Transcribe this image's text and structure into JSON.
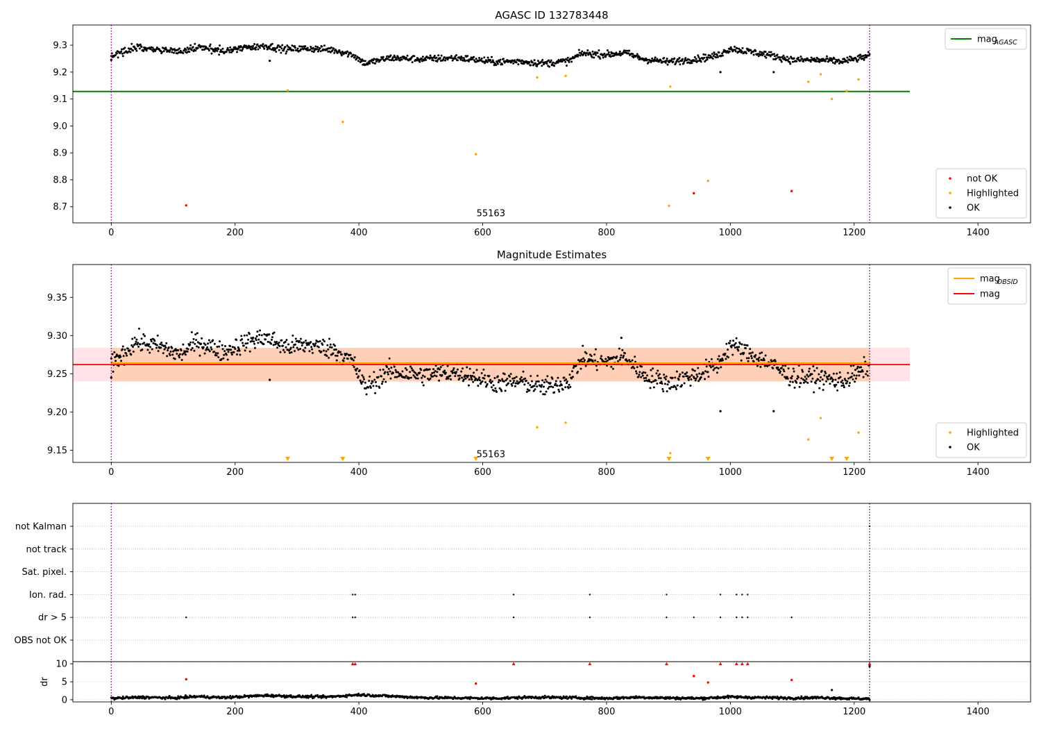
{
  "chart_data": [
    {
      "type": "scatter",
      "title": "AGASC ID 132783448",
      "xlim": [
        -62,
        1485
      ],
      "ylim": [
        8.64,
        9.375
      ],
      "yticks": [
        8.7,
        8.8,
        8.9,
        9.0,
        9.1,
        9.2,
        9.3
      ],
      "xticks": [
        0,
        200,
        400,
        600,
        800,
        1000,
        1200,
        1400
      ],
      "vlines": [
        0,
        1225
      ],
      "hlines": [
        {
          "name": "mag_AGASC",
          "label_main": "mag",
          "label_sub": "AGASC",
          "y": 9.128,
          "xmin": -62,
          "xmax": 1290,
          "color": "#008000"
        }
      ],
      "annotation": {
        "text": "55163",
        "x": 590,
        "y": 8.665
      },
      "legend_upper": [
        {
          "label_main": "mag",
          "label_sub": "AGASC",
          "color": "#008000"
        }
      ],
      "legend_lower": [
        {
          "label": "not OK",
          "color": "#ff0000"
        },
        {
          "label": "Highlighted",
          "color": "#ffa500"
        },
        {
          "label": "OK",
          "color": "#000000"
        }
      ],
      "series": [
        {
          "name": "not OK",
          "color": "#ff0000",
          "points": [
            [
              121,
              8.705
            ],
            [
              941,
              8.75
            ],
            [
              1099,
              8.758
            ]
          ]
        },
        {
          "name": "Highlighted",
          "color": "#ffa500",
          "points": [
            [
              285,
              9.132
            ],
            [
              374,
              9.015
            ],
            [
              589,
              8.895
            ],
            [
              688,
              9.18
            ],
            [
              734,
              9.186
            ],
            [
              901,
              8.703
            ],
            [
              903,
              9.146
            ],
            [
              964,
              8.796
            ],
            [
              1126,
              9.164
            ],
            [
              1146,
              9.192
            ],
            [
              1164,
              9.1
            ],
            [
              1188,
              9.13
            ],
            [
              1207,
              9.173
            ]
          ]
        },
        {
          "name": "OK",
          "color": "#000000",
          "trend": [
            [
              0,
              9.262
            ],
            [
              40,
              9.292
            ],
            [
              80,
              9.285
            ],
            [
              110,
              9.275
            ],
            [
              140,
              9.292
            ],
            [
              180,
              9.278
            ],
            [
              220,
              9.292
            ],
            [
              250,
              9.298
            ],
            [
              280,
              9.285
            ],
            [
              320,
              9.288
            ],
            [
              360,
              9.282
            ],
            [
              390,
              9.265
            ],
            [
              410,
              9.232
            ],
            [
              450,
              9.253
            ],
            [
              500,
              9.248
            ],
            [
              560,
              9.253
            ],
            [
              620,
              9.238
            ],
            [
              660,
              9.24
            ],
            [
              700,
              9.232
            ],
            [
              740,
              9.242
            ],
            [
              760,
              9.27
            ],
            [
              800,
              9.265
            ],
            [
              830,
              9.272
            ],
            [
              860,
              9.248
            ],
            [
              900,
              9.238
            ],
            [
              950,
              9.25
            ],
            [
              980,
              9.262
            ],
            [
              1000,
              9.288
            ],
            [
              1020,
              9.28
            ],
            [
              1060,
              9.265
            ],
            [
              1100,
              9.245
            ],
            [
              1140,
              9.245
            ],
            [
              1180,
              9.24
            ],
            [
              1210,
              9.252
            ],
            [
              1225,
              9.262
            ]
          ],
          "n": 1225,
          "spread": 0.009,
          "outliers": [
            [
              0,
              9.245
            ],
            [
              256,
              9.242
            ],
            [
              984,
              9.2
            ],
            [
              1070,
              9.2
            ]
          ]
        }
      ]
    },
    {
      "type": "scatter",
      "title": "Magnitude Estimates",
      "xlim": [
        -62,
        1485
      ],
      "ylim": [
        9.134,
        9.393
      ],
      "yticks": [
        9.15,
        9.2,
        9.25,
        9.3,
        9.35
      ],
      "xticks": [
        0,
        200,
        400,
        600,
        800,
        1000,
        1200,
        1400
      ],
      "vlines": [
        0,
        1225
      ],
      "bands": [
        {
          "name": "mag band",
          "ymin": 9.24,
          "ymax": 9.284,
          "xmin": -62,
          "xmax": 1290,
          "color": "#ff9aaa",
          "opacity": 0.28
        },
        {
          "name": "mag_OBSID band",
          "ymin": 9.24,
          "ymax": 9.284,
          "xmin": 0,
          "xmax": 1225,
          "color": "#ffa24a",
          "opacity": 0.3
        }
      ],
      "hlines": [
        {
          "name": "mag_OBSID",
          "y": 9.264,
          "xmin": 0,
          "xmax": 1225,
          "color": "#ffa500"
        },
        {
          "name": "mag",
          "y": 9.262,
          "xmin": -62,
          "xmax": 1290,
          "color": "#ff0000"
        }
      ],
      "annotation": {
        "text": "55163",
        "x": 590,
        "y": 9.141
      },
      "legend_upper": [
        {
          "label_main": "mag",
          "label_sub": "OBSID",
          "color": "#ffa500"
        },
        {
          "label_main": "mag",
          "label_sub": "",
          "color": "#ff0000"
        }
      ],
      "legend_lower": [
        {
          "label": "Highlighted",
          "color": "#ffa500"
        },
        {
          "label": "OK",
          "color": "#000000"
        }
      ],
      "series": [
        {
          "name": "Highlighted",
          "color": "#ffa500",
          "points": [
            [
              688,
              9.18
            ],
            [
              734,
              9.186
            ],
            [
              903,
              9.146
            ],
            [
              1126,
              9.164
            ],
            [
              1146,
              9.192
            ],
            [
              1207,
              9.173
            ]
          ],
          "below_markers": [
            285,
            374,
            589,
            901,
            964,
            1164,
            1188
          ]
        },
        {
          "name": "OK",
          "color": "#000000",
          "trend": [
            [
              0,
              9.262
            ],
            [
              40,
              9.292
            ],
            [
              80,
              9.285
            ],
            [
              110,
              9.275
            ],
            [
              140,
              9.292
            ],
            [
              180,
              9.278
            ],
            [
              220,
              9.292
            ],
            [
              250,
              9.298
            ],
            [
              280,
              9.285
            ],
            [
              320,
              9.288
            ],
            [
              360,
              9.282
            ],
            [
              390,
              9.265
            ],
            [
              410,
              9.232
            ],
            [
              450,
              9.253
            ],
            [
              500,
              9.248
            ],
            [
              560,
              9.253
            ],
            [
              620,
              9.238
            ],
            [
              660,
              9.24
            ],
            [
              700,
              9.232
            ],
            [
              740,
              9.242
            ],
            [
              760,
              9.27
            ],
            [
              800,
              9.265
            ],
            [
              830,
              9.272
            ],
            [
              860,
              9.248
            ],
            [
              900,
              9.238
            ],
            [
              950,
              9.25
            ],
            [
              980,
              9.262
            ],
            [
              1000,
              9.288
            ],
            [
              1020,
              9.28
            ],
            [
              1060,
              9.265
            ],
            [
              1100,
              9.245
            ],
            [
              1140,
              9.245
            ],
            [
              1180,
              9.24
            ],
            [
              1210,
              9.252
            ],
            [
              1225,
              9.262
            ]
          ],
          "n": 1225,
          "spread": 0.009,
          "outliers": [
            [
              0,
              9.245
            ],
            [
              256,
              9.242
            ],
            [
              824,
              9.297
            ],
            [
              984,
              9.201
            ],
            [
              1070,
              9.201
            ]
          ]
        }
      ]
    },
    {
      "type": "scatter",
      "title": "",
      "xlim": [
        -62,
        1485
      ],
      "categories": [
        "OBS not OK",
        "dr > 5",
        "Ion. rad.",
        "Sat. pixel.",
        "not track",
        "not Kalman"
      ],
      "vlines": [
        0,
        1225
      ],
      "flags": {
        "dr > 5": [
          121,
          390,
          394,
          650,
          773,
          897,
          941,
          984,
          1010,
          1019,
          1028,
          1099
        ],
        "Ion. rad.": [
          390,
          394,
          650,
          773,
          897,
          984,
          1010,
          1019,
          1028
        ],
        "not Kalman": [
          1225
        ]
      }
    },
    {
      "type": "scatter",
      "title": "",
      "ylabel": "dr",
      "xlim": [
        -62,
        1485
      ],
      "ylim": [
        -0.6,
        10.6
      ],
      "yticks": [
        0,
        5,
        10
      ],
      "xticks": [
        0,
        200,
        400,
        600,
        800,
        1000,
        1200,
        1400
      ],
      "vlines": [
        0,
        1225
      ],
      "series": [
        {
          "name": "not OK",
          "color": "#ff0000",
          "points": [
            [
              121,
              5.7
            ],
            [
              589,
              4.5
            ],
            [
              941,
              6.6
            ],
            [
              964,
              4.8
            ],
            [
              1099,
              5.5
            ]
          ],
          "capped": [
            390,
            394,
            650,
            773,
            897,
            984,
            1010,
            1019,
            1028,
            1225
          ]
        },
        {
          "name": "OK",
          "color": "#000000",
          "trend": [
            [
              0,
              0.4
            ],
            [
              50,
              0.7
            ],
            [
              100,
              0.5
            ],
            [
              140,
              0.9
            ],
            [
              180,
              0.6
            ],
            [
              250,
              1.2
            ],
            [
              300,
              0.9
            ],
            [
              350,
              0.8
            ],
            [
              400,
              1.4
            ],
            [
              450,
              1.0
            ],
            [
              500,
              0.6
            ],
            [
              560,
              0.5
            ],
            [
              620,
              0.4
            ],
            [
              680,
              0.7
            ],
            [
              740,
              0.6
            ],
            [
              800,
              0.4
            ],
            [
              850,
              0.7
            ],
            [
              900,
              0.5
            ],
            [
              950,
              0.4
            ],
            [
              1000,
              0.8
            ],
            [
              1050,
              0.6
            ],
            [
              1100,
              0.5
            ],
            [
              1150,
              0.6
            ],
            [
              1200,
              0.3
            ],
            [
              1225,
              0.3
            ]
          ],
          "n": 1225,
          "spread": 0.25,
          "outliers": [
            [
              1164,
              2.7
            ],
            [
              1225,
              9.3
            ]
          ]
        }
      ]
    }
  ]
}
